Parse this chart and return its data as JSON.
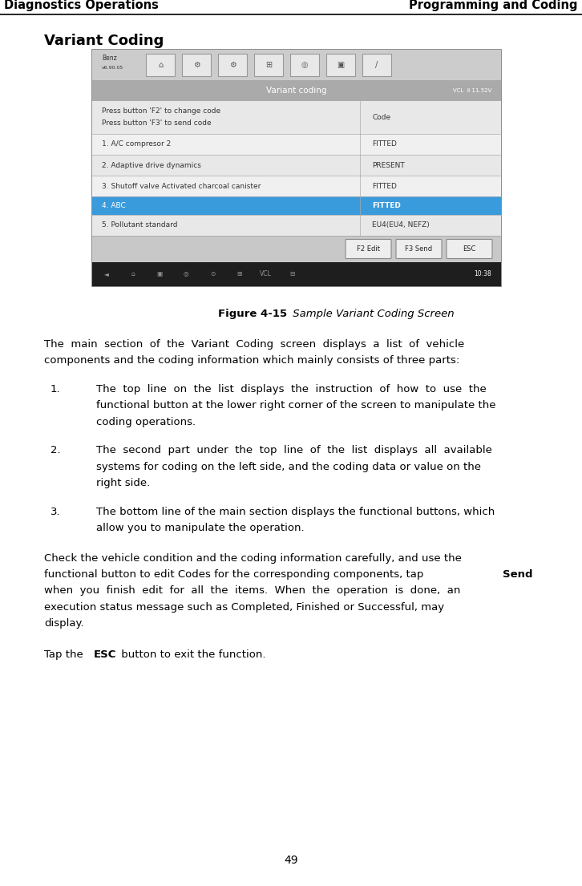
{
  "page_width": 7.26,
  "page_height": 11.05,
  "bg_color": "#ffffff",
  "header_left": "Diagnostics Operations",
  "header_right": "Programming and Coding",
  "header_font_size": 10.5,
  "section_title": "Variant Coding",
  "section_title_font_size": 13,
  "figure_caption_bold": "Figure 4-15",
  "figure_caption_italic": " Sample Variant Coding Screen",
  "figure_caption_font_size": 9.5,
  "body_font_size": 9.5,
  "screen_rows": [
    {
      "left": "Press button 'F2' to change code\nPress button 'F3' to send code",
      "right": "Code",
      "highlight": false,
      "bg": "#e8e8e8"
    },
    {
      "left": "1. A/C compresor 2",
      "right": "FITTED",
      "highlight": false,
      "bg": "#f0f0f0"
    },
    {
      "left": "2. Adaptive drive dynamics",
      "right": "PRESENT",
      "highlight": false,
      "bg": "#e8e8e8"
    },
    {
      "left": "3. Shutoff valve Activated charcoal canister",
      "right": "FITTED",
      "highlight": false,
      "bg": "#f0f0f0"
    },
    {
      "left": "4. ABC",
      "right": "FITTED",
      "highlight": true,
      "bg": "#3a9bdc"
    },
    {
      "left": "5. Pollutant standard",
      "right": "EU4(EU4, NEFZ)",
      "highlight": false,
      "bg": "#e8e8e8"
    }
  ],
  "screen_btns": [
    "F2 Edit",
    "F3 Send",
    "ESC"
  ],
  "page_number": "49"
}
